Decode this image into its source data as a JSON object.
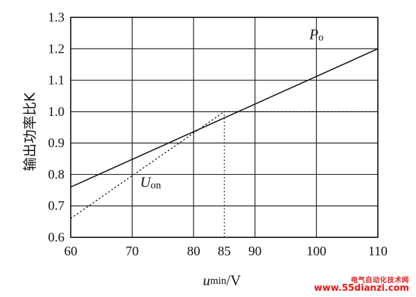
{
  "chart_data": {
    "type": "line",
    "xlabel_main": "u",
    "xlabel_sub": "min",
    "xlabel_unit": "/V",
    "ylabel": "输出功率比K",
    "xlim": [
      60,
      110
    ],
    "ylim": [
      0.6,
      1.3
    ],
    "x_grid": [
      60,
      70,
      80,
      90,
      100,
      110
    ],
    "y_grid": [
      0.6,
      0.7,
      0.8,
      0.9,
      1.0,
      1.1,
      1.2,
      1.3
    ],
    "x_ticks": [
      {
        "value": 60,
        "label": "60"
      },
      {
        "value": 70,
        "label": "70"
      },
      {
        "value": 80,
        "label": "80"
      },
      {
        "value": 85,
        "label": "85"
      },
      {
        "value": 90,
        "label": "90"
      },
      {
        "value": 100,
        "label": "100"
      },
      {
        "value": 110,
        "label": "110"
      }
    ],
    "y_ticks": [
      {
        "value": 0.6,
        "label": "0.6"
      },
      {
        "value": 0.7,
        "label": "0.7"
      },
      {
        "value": 0.8,
        "label": "0.8"
      },
      {
        "value": 0.9,
        "label": "0.9"
      },
      {
        "value": 1.0,
        "label": "1.0"
      },
      {
        "value": 1.1,
        "label": "1.1"
      },
      {
        "value": 1.2,
        "label": "1.2"
      },
      {
        "value": 1.3,
        "label": "1.3"
      }
    ],
    "grid": true,
    "series": [
      {
        "name_main": "P",
        "name_sub": "o",
        "style": "solid",
        "x": [
          60,
          110
        ],
        "y": [
          0.76,
          1.2
        ],
        "label_at": [
          100,
          1.23
        ]
      },
      {
        "name_main": "U",
        "name_sub": "on",
        "style": "dashed",
        "x": [
          60,
          85,
          110
        ],
        "y": [
          0.66,
          1.0,
          1.0
        ],
        "label_at": [
          73,
          0.76
        ]
      }
    ],
    "guide_x": 85,
    "guide_y_range": [
      0.6,
      1.0
    ]
  },
  "watermark": {
    "line1": "电气自动化技术网",
    "line2": "www.55dianzi.com"
  }
}
